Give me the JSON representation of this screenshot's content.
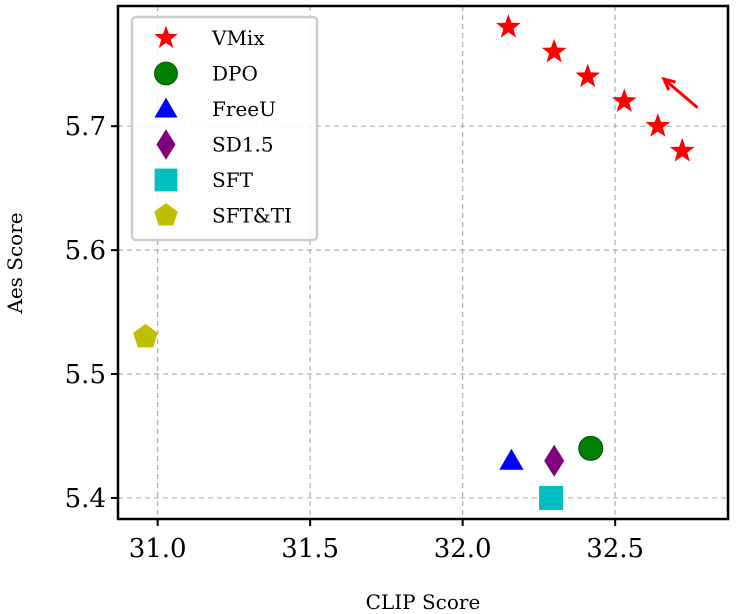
{
  "chart_data": {
    "type": "scatter",
    "xlabel": "CLIP Score",
    "ylabel": "Aes Score",
    "xlim": [
      30.87,
      32.87
    ],
    "ylim": [
      5.383,
      5.797
    ],
    "xticks": [
      31.0,
      31.5,
      32.0,
      32.5
    ],
    "yticks": [
      5.4,
      5.5,
      5.6,
      5.7
    ],
    "xtick_labels": [
      "31.0",
      "31.5",
      "32.0",
      "32.5"
    ],
    "ytick_labels": [
      "5.4",
      "5.5",
      "5.6",
      "5.7"
    ],
    "grid": true,
    "legend_position": "upper-left",
    "series": [
      {
        "name": "VMix",
        "marker": "star",
        "color": "#ff0000",
        "points": [
          [
            32.15,
            5.78
          ],
          [
            32.3,
            5.76
          ],
          [
            32.41,
            5.74
          ],
          [
            32.53,
            5.72
          ],
          [
            32.64,
            5.7
          ],
          [
            32.72,
            5.68
          ]
        ]
      },
      {
        "name": "DPO",
        "marker": "circle",
        "color": "#008000",
        "points": [
          [
            32.42,
            5.44
          ]
        ]
      },
      {
        "name": "FreeU",
        "marker": "triangle",
        "color": "#0000ff",
        "points": [
          [
            32.16,
            5.43
          ]
        ]
      },
      {
        "name": "SD1.5",
        "marker": "diamond",
        "color": "#800080",
        "points": [
          [
            32.3,
            5.43
          ]
        ]
      },
      {
        "name": "SFT",
        "marker": "square",
        "color": "#00bfbf",
        "points": [
          [
            32.29,
            5.4
          ]
        ]
      },
      {
        "name": "SFT&TI",
        "marker": "pentagon",
        "color": "#bfbf00",
        "points": [
          [
            30.96,
            5.53
          ]
        ]
      }
    ],
    "annotations": [
      {
        "type": "arrow",
        "color": "#ff0000",
        "from": [
          32.77,
          5.715
        ],
        "to": [
          32.66,
          5.738
        ]
      }
    ]
  }
}
